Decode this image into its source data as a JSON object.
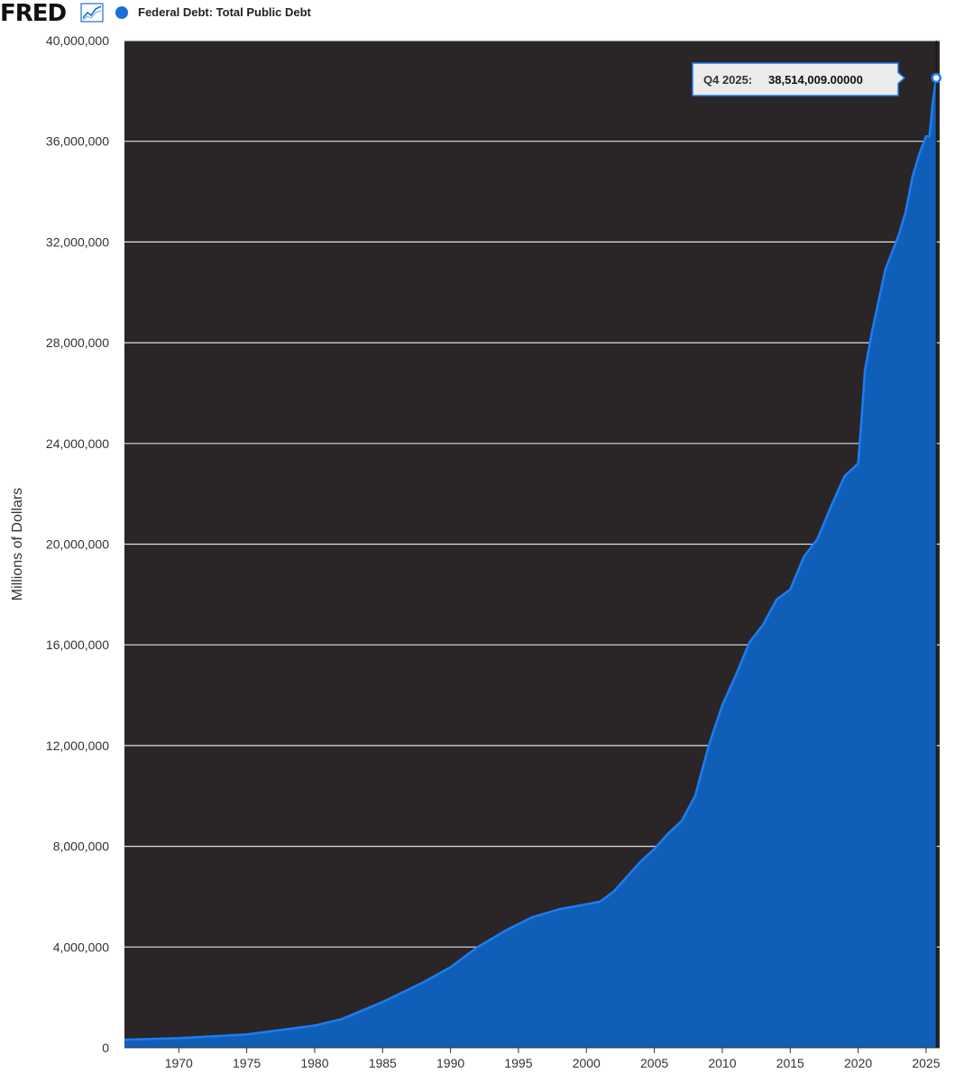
{
  "header": {
    "logo": "FRED",
    "logo_icon": "line-chart-icon",
    "legend_label": "Federal Debt: Total Public Debt"
  },
  "tooltip": {
    "label": "Q4 2025:",
    "value": "38,514,009.00000"
  },
  "colors": {
    "plot_background": "#2a2526",
    "area_fill": "#0f5fb9",
    "line": "#1f7cf0",
    "gridline": "#e0e0e0"
  },
  "chart_data": {
    "type": "area",
    "title": "Federal Debt: Total Public Debt",
    "xlabel": "",
    "ylabel": "Millions of Dollars",
    "xlim": [
      1966,
      2026
    ],
    "ylim": [
      0,
      40000000
    ],
    "grid": true,
    "y_ticks": [
      0,
      4000000,
      8000000,
      12000000,
      16000000,
      20000000,
      24000000,
      28000000,
      32000000,
      36000000,
      40000000
    ],
    "y_tick_labels": [
      "0",
      "4,000,000",
      "8,000,000",
      "12,000,000",
      "16,000,000",
      "20,000,000",
      "24,000,000",
      "28,000,000",
      "32,000,000",
      "36,000,000",
      "40,000,000"
    ],
    "x_tick_labels": [
      "1970",
      "1975",
      "1980",
      "1985",
      "1990",
      "1995",
      "2000",
      "2005",
      "2010",
      "2015",
      "2020",
      "2025"
    ],
    "series": [
      {
        "name": "Federal Debt: Total Public Debt",
        "x": [
          1966,
          1970,
          1975,
          1980,
          1982,
          1985,
          1988,
          1990,
          1992,
          1994,
          1996,
          1998,
          2000,
          2001,
          2002,
          2003,
          2004,
          2005,
          2006,
          2007,
          2008,
          2009,
          2010,
          2011,
          2012,
          2013,
          2014,
          2015,
          2016,
          2017,
          2018,
          2019,
          2020.0,
          2020.25,
          2020.5,
          2021,
          2022,
          2023,
          2023.5,
          2024,
          2024.5,
          2025.0,
          2025.25,
          2025.5,
          2025.75
        ],
        "y": [
          320000,
          380000,
          530000,
          880000,
          1140000,
          1820000,
          2600000,
          3200000,
          4000000,
          4640000,
          5180000,
          5500000,
          5700000,
          5800000,
          6200000,
          6800000,
          7400000,
          7900000,
          8500000,
          9000000,
          10000000,
          12000000,
          13600000,
          14800000,
          16100000,
          16800000,
          17800000,
          18200000,
          19500000,
          20200000,
          21500000,
          22700000,
          23200000,
          25000000,
          26900000,
          28400000,
          30900000,
          32300000,
          33200000,
          34600000,
          35500000,
          36200000,
          36200000,
          37600000,
          38514009
        ]
      }
    ]
  }
}
